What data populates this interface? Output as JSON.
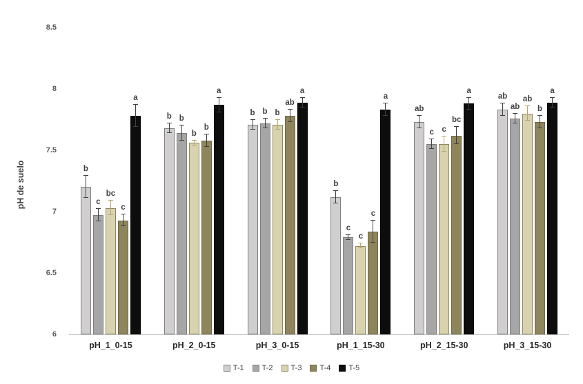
{
  "chart_data": {
    "type": "bar",
    "title": "",
    "xlabel": "",
    "ylabel": "pH de suelo",
    "ylim": [
      6,
      8.5
    ],
    "grid": false,
    "legend_position": "bottom",
    "yticks": [
      {
        "value": 6,
        "label": "6"
      },
      {
        "value": 6.5,
        "label": "6.5"
      },
      {
        "value": 7,
        "label": "7"
      },
      {
        "value": 7.5,
        "label": "7.5"
      },
      {
        "value": 8,
        "label": "8"
      },
      {
        "value": 8.5,
        "label": "8.5"
      }
    ],
    "categories": [
      "pH_1_0-15",
      "pH_2_0-15",
      "pH_3_0-15",
      "pH_1_15-30",
      "pH_2_15-30",
      "pH_3_15-30"
    ],
    "series": [
      {
        "name": "T-1",
        "color": "#d0cece",
        "border": "#7f7f7f",
        "err_color": "#404040",
        "values": [
          7.2,
          7.68,
          7.71,
          7.12,
          7.73,
          7.83
        ],
        "errors": [
          0.09,
          0.04,
          0.04,
          0.05,
          0.05,
          0.05
        ],
        "letters": [
          "b",
          "b",
          "b",
          "b",
          "ab",
          "ab"
        ]
      },
      {
        "name": "T-2",
        "color": "#a6a6a6",
        "border": "#7f7f7f",
        "err_color": "#404040",
        "values": [
          6.97,
          7.64,
          7.72,
          6.79,
          7.55,
          7.76
        ],
        "errors": [
          0.05,
          0.06,
          0.04,
          0.02,
          0.04,
          0.04
        ],
        "letters": [
          "c",
          "b",
          "b",
          "c",
          "c",
          "ab"
        ]
      },
      {
        "name": "T-3",
        "color": "#d8d2ae",
        "border": "#8c8661",
        "err_color": "#b3a76f",
        "values": [
          7.03,
          7.56,
          7.71,
          6.72,
          7.55,
          7.8
        ],
        "errors": [
          0.06,
          0.02,
          0.04,
          0.02,
          0.06,
          0.06
        ],
        "letters": [
          "bc",
          "b",
          "b",
          "c",
          "c",
          "ab"
        ]
      },
      {
        "name": "T-4",
        "color": "#8f855c",
        "border": "#6e6545",
        "err_color": "#404040",
        "values": [
          6.93,
          7.58,
          7.78,
          6.84,
          7.62,
          7.73
        ],
        "errors": [
          0.05,
          0.05,
          0.05,
          0.09,
          0.07,
          0.05
        ],
        "letters": [
          "c",
          "b",
          "ab",
          "c",
          "bc",
          "b"
        ]
      },
      {
        "name": "T-5",
        "color": "#0d0d0d",
        "pattern": "dots",
        "border": "#000000",
        "err_color": "#404040",
        "values": [
          7.78,
          7.87,
          7.89,
          7.83,
          7.88,
          7.89
        ],
        "errors": [
          0.09,
          0.06,
          0.04,
          0.05,
          0.05,
          0.04
        ],
        "letters": [
          "a",
          "a",
          "a",
          "a",
          "a",
          "a"
        ]
      }
    ]
  }
}
